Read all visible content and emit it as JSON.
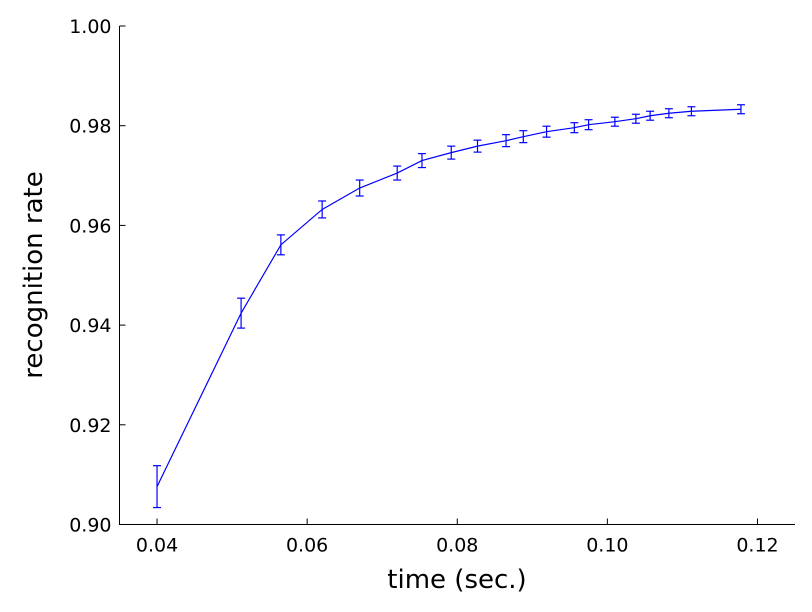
{
  "chart_data": {
    "type": "line",
    "title": "",
    "xlabel": "time (sec.)",
    "ylabel": "recognition rate",
    "xlim": [
      0.035,
      0.125
    ],
    "ylim": [
      0.9,
      1.0
    ],
    "x_ticks": [
      0.04,
      0.06,
      0.08,
      0.1,
      0.12
    ],
    "x_tick_labels": [
      "0.04",
      "0.06",
      "0.08",
      "0.10",
      "0.12"
    ],
    "y_ticks": [
      0.9,
      0.92,
      0.94,
      0.96,
      0.98,
      1.0
    ],
    "y_tick_labels": [
      "0.90",
      "0.92",
      "0.94",
      "0.96",
      "0.98",
      "1.00"
    ],
    "grid": false,
    "line_color": "#0000ff",
    "series": [
      {
        "x": [
          0.04,
          0.0512,
          0.0565,
          0.062,
          0.067,
          0.072,
          0.0753,
          0.0792,
          0.0827,
          0.0865,
          0.0888,
          0.0919,
          0.0956,
          0.0975,
          0.101,
          0.1038,
          0.1057,
          0.1082,
          0.1112,
          0.1178
        ],
        "y": [
          0.9076,
          0.9424,
          0.9561,
          0.9632,
          0.9675,
          0.9705,
          0.973,
          0.9746,
          0.9759,
          0.977,
          0.9778,
          0.9788,
          0.9796,
          0.9802,
          0.9808,
          0.9814,
          0.982,
          0.9825,
          0.9829,
          0.9833
        ],
        "err": [
          0.0042,
          0.003,
          0.002,
          0.0017,
          0.0016,
          0.0014,
          0.0014,
          0.0013,
          0.0012,
          0.0012,
          0.0012,
          0.0011,
          0.001,
          0.001,
          0.0009,
          0.0009,
          0.0009,
          0.0009,
          0.0009,
          0.0009
        ]
      }
    ]
  }
}
